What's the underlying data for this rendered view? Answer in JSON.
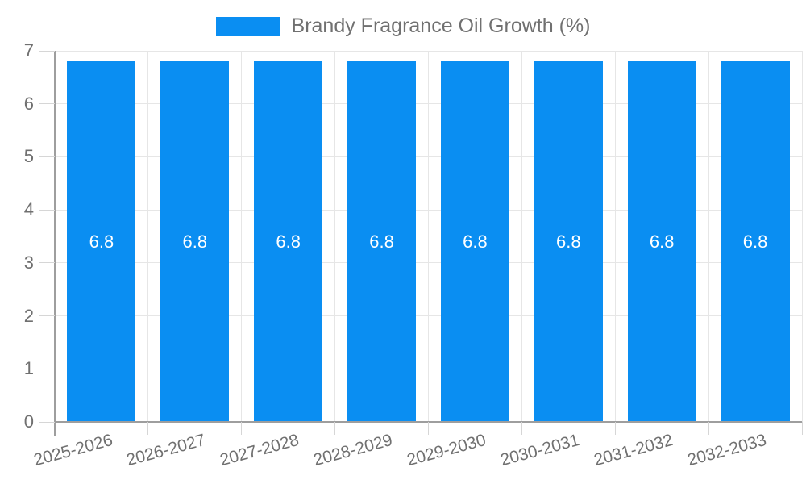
{
  "chart_data": {
    "type": "bar",
    "title": "Brandy Fragrance Oil Growth (%)",
    "categories": [
      "2025-2026",
      "2026-2027",
      "2027-2028",
      "2028-2029",
      "2029-2030",
      "2030-2031",
      "2031-2032",
      "2032-2033"
    ],
    "values": [
      6.8,
      6.8,
      6.8,
      6.8,
      6.8,
      6.8,
      6.8,
      6.8
    ],
    "bar_labels": [
      "6.8",
      "6.8",
      "6.8",
      "6.8",
      "6.8",
      "6.8",
      "6.8",
      "6.8"
    ],
    "xlabel": "",
    "ylabel": "",
    "ylim": [
      0,
      7
    ],
    "y_ticks": [
      0,
      1,
      2,
      3,
      4,
      5,
      6,
      7
    ],
    "grid": true,
    "legend_position": "top-center",
    "x_label_rotation_deg": -15,
    "colors": {
      "bar": "#0a8ef2",
      "bar_label": "#ffffff",
      "axis_text": "#707070",
      "gridline": "#e6e6e6",
      "tick_line": "#d6d6d6",
      "axis_line": "#9e9e9e",
      "background": "#ffffff"
    }
  }
}
